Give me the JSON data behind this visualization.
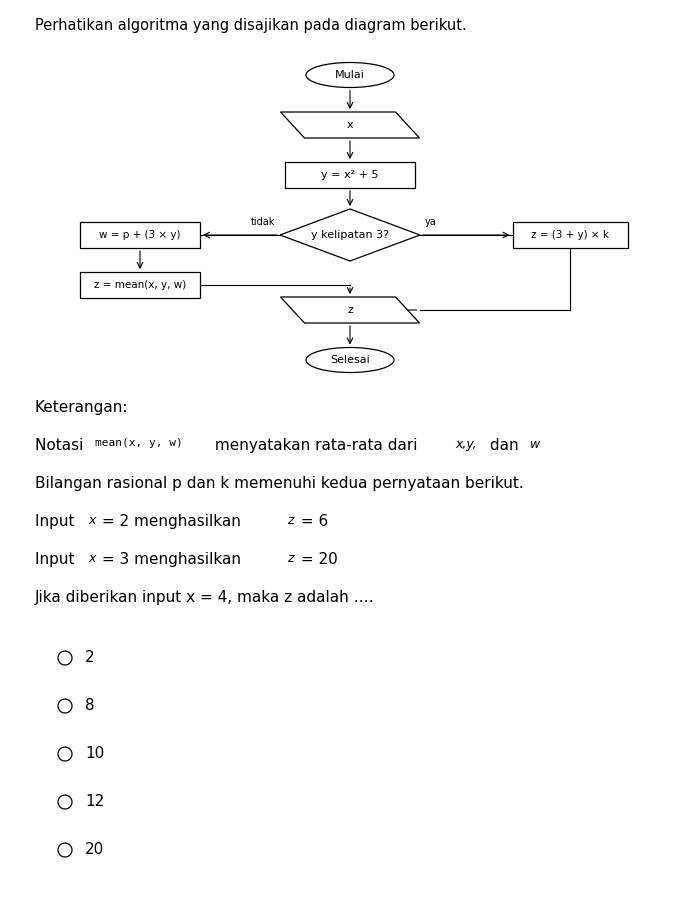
{
  "title": "Perhatikan algoritma yang disajikan pada diagram berikut.",
  "bg_color": "#ffffff",
  "text_color": "#000000",
  "keterangan_title": "Keterangan:",
  "line2": "Bilangan rasional p dan k memenuhi kedua pernyataan berikut.",
  "line5": "Jika diberikan input x = 4, maka z adalah ….",
  "options": [
    "2",
    "8",
    "10",
    "12",
    "20"
  ],
  "node_mulai": "Mulai",
  "node_x": "x",
  "node_y": "y = x² + 5",
  "node_dec": "y kelipatan 3?",
  "node_w": "w = p + (3 × y)",
  "node_zmean": "z = mean(x, y, w)",
  "node_zk": "z = (3 + y) × k",
  "node_outz": "z",
  "node_selesai": "Selesai",
  "label_tidak": "tidak",
  "label_ya": "ya"
}
